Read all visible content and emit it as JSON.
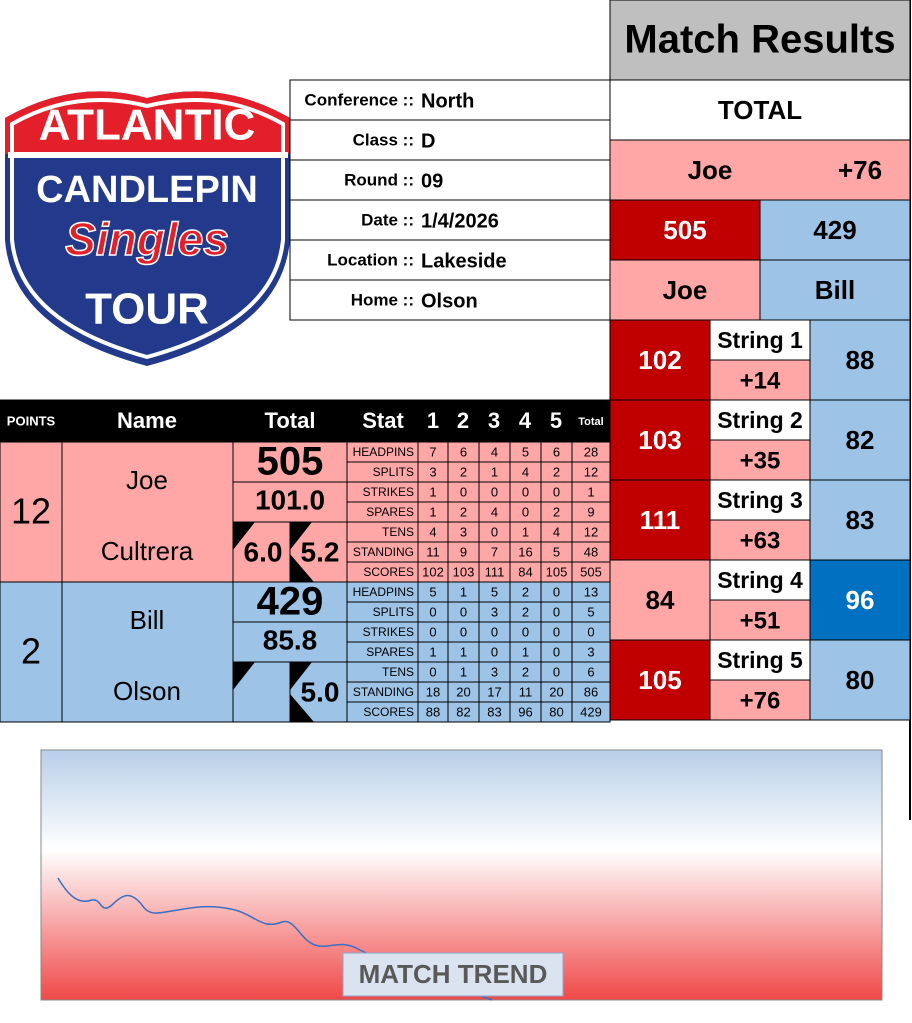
{
  "logo": {
    "line1": "ATLANTIC",
    "line2": "CANDLEPIN",
    "line3": "Singles",
    "line4": "TOUR"
  },
  "info": [
    {
      "label": "Conference ::",
      "value": "North"
    },
    {
      "label": "Class ::",
      "value": "D"
    },
    {
      "label": "Round ::",
      "value": "09"
    },
    {
      "label": "Date ::",
      "value": "1/4/2026"
    },
    {
      "label": "Location ::",
      "value": "Lakeside"
    },
    {
      "label": "Home ::",
      "value": "Olson"
    }
  ],
  "match_results": {
    "title": "Match Results",
    "total_label": "TOTAL",
    "leader": "Joe",
    "margin": "+76",
    "score1": 505,
    "score2": 429,
    "name1": "Joe",
    "name2": "Bill",
    "strings": [
      {
        "label": "String 1",
        "p1": 102,
        "diff": "+14",
        "p2": 88
      },
      {
        "label": "String 2",
        "p1": 103,
        "diff": "+35",
        "p2": 82
      },
      {
        "label": "String 3",
        "p1": 111,
        "diff": "+63",
        "p2": 83
      },
      {
        "label": "String 4",
        "p1": 84,
        "diff": "+51",
        "p2": 96
      },
      {
        "label": "String 5",
        "p1": 105,
        "diff": "+76",
        "p2": 80
      }
    ]
  },
  "table": {
    "headers": [
      "POINTS",
      "Name",
      "Total",
      "Stat",
      "1",
      "2",
      "3",
      "4",
      "5",
      "Total"
    ],
    "players": [
      {
        "points": 12,
        "first": "Joe",
        "last": "Cultrera",
        "total": 505,
        "average": "101.0",
        "box1": "6.0",
        "box2": "5.2",
        "stats": [
          {
            "name": "HEADPINS",
            "values": [
              7,
              6,
              4,
              5,
              6
            ],
            "total": 28
          },
          {
            "name": "SPLITS",
            "values": [
              3,
              2,
              1,
              4,
              2
            ],
            "total": 12
          },
          {
            "name": "STRIKES",
            "values": [
              1,
              0,
              0,
              0,
              0
            ],
            "total": 1
          },
          {
            "name": "SPARES",
            "values": [
              1,
              2,
              4,
              0,
              2
            ],
            "total": 9
          },
          {
            "name": "TENS",
            "values": [
              4,
              3,
              0,
              1,
              4
            ],
            "total": 12
          },
          {
            "name": "STANDING",
            "values": [
              11,
              9,
              7,
              16,
              5
            ],
            "total": 48
          },
          {
            "name": "SCORES",
            "values": [
              102,
              103,
              111,
              84,
              105
            ],
            "total": 505
          }
        ]
      },
      {
        "points": 2,
        "first": "Bill",
        "last": "Olson",
        "total": 429,
        "average": "85.8",
        "box2": "5.0",
        "stats": [
          {
            "name": "HEADPINS",
            "values": [
              5,
              1,
              5,
              2,
              0
            ],
            "total": 13
          },
          {
            "name": "SPLITS",
            "values": [
              0,
              0,
              3,
              2,
              0
            ],
            "total": 5
          },
          {
            "name": "STRIKES",
            "values": [
              0,
              0,
              0,
              0,
              0
            ],
            "total": 0
          },
          {
            "name": "SPARES",
            "values": [
              1,
              1,
              0,
              1,
              0
            ],
            "total": 3
          },
          {
            "name": "TENS",
            "values": [
              0,
              1,
              3,
              2,
              0
            ],
            "total": 6
          },
          {
            "name": "STANDING",
            "values": [
              18,
              20,
              17,
              11,
              20
            ],
            "total": 86
          },
          {
            "name": "SCORES",
            "values": [
              88,
              82,
              83,
              96,
              80
            ],
            "total": 429
          }
        ]
      }
    ]
  },
  "trend": {
    "label": "MATCH TREND"
  }
}
